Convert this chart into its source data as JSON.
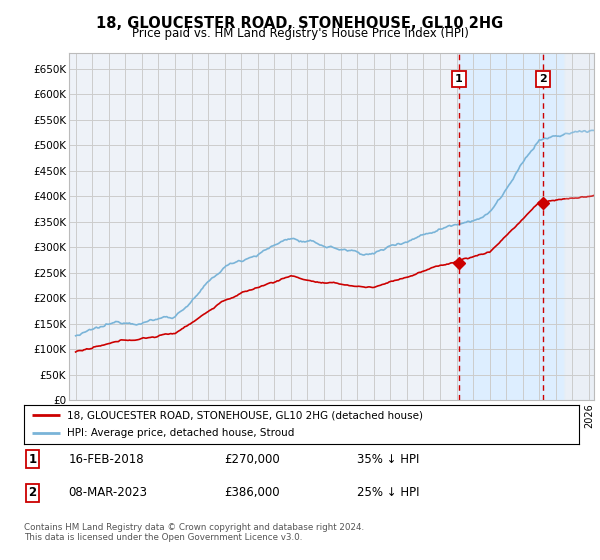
{
  "title": "18, GLOUCESTER ROAD, STONEHOUSE, GL10 2HG",
  "subtitle": "Price paid vs. HM Land Registry's House Price Index (HPI)",
  "ylim": [
    0,
    680000
  ],
  "xlim_start": 1994.6,
  "xlim_end": 2026.3,
  "transaction1": {
    "date": "16-FEB-2018",
    "price": 270000,
    "label": "1",
    "year": 2018.12
  },
  "transaction2": {
    "date": "08-MAR-2023",
    "price": 386000,
    "label": "2",
    "year": 2023.21
  },
  "legend_line1": "18, GLOUCESTER ROAD, STONEHOUSE, GL10 2HG (detached house)",
  "legend_line2": "HPI: Average price, detached house, Stroud",
  "footer1": "Contains HM Land Registry data © Crown copyright and database right 2024.",
  "footer2": "This data is licensed under the Open Government Licence v3.0.",
  "note1_label": "1",
  "note1_date": "16-FEB-2018",
  "note1_price": "£270,000",
  "note1_change": "35% ↓ HPI",
  "note2_label": "2",
  "note2_date": "08-MAR-2023",
  "note2_price": "£386,000",
  "note2_change": "25% ↓ HPI",
  "hpi_color": "#7ab4d8",
  "price_color": "#cc0000",
  "vline_color": "#cc0000",
  "shade_color": "#ddeeff",
  "hatch_color": "#b0b8c8",
  "grid_color": "#cccccc",
  "bg_color": "#eef2f8"
}
